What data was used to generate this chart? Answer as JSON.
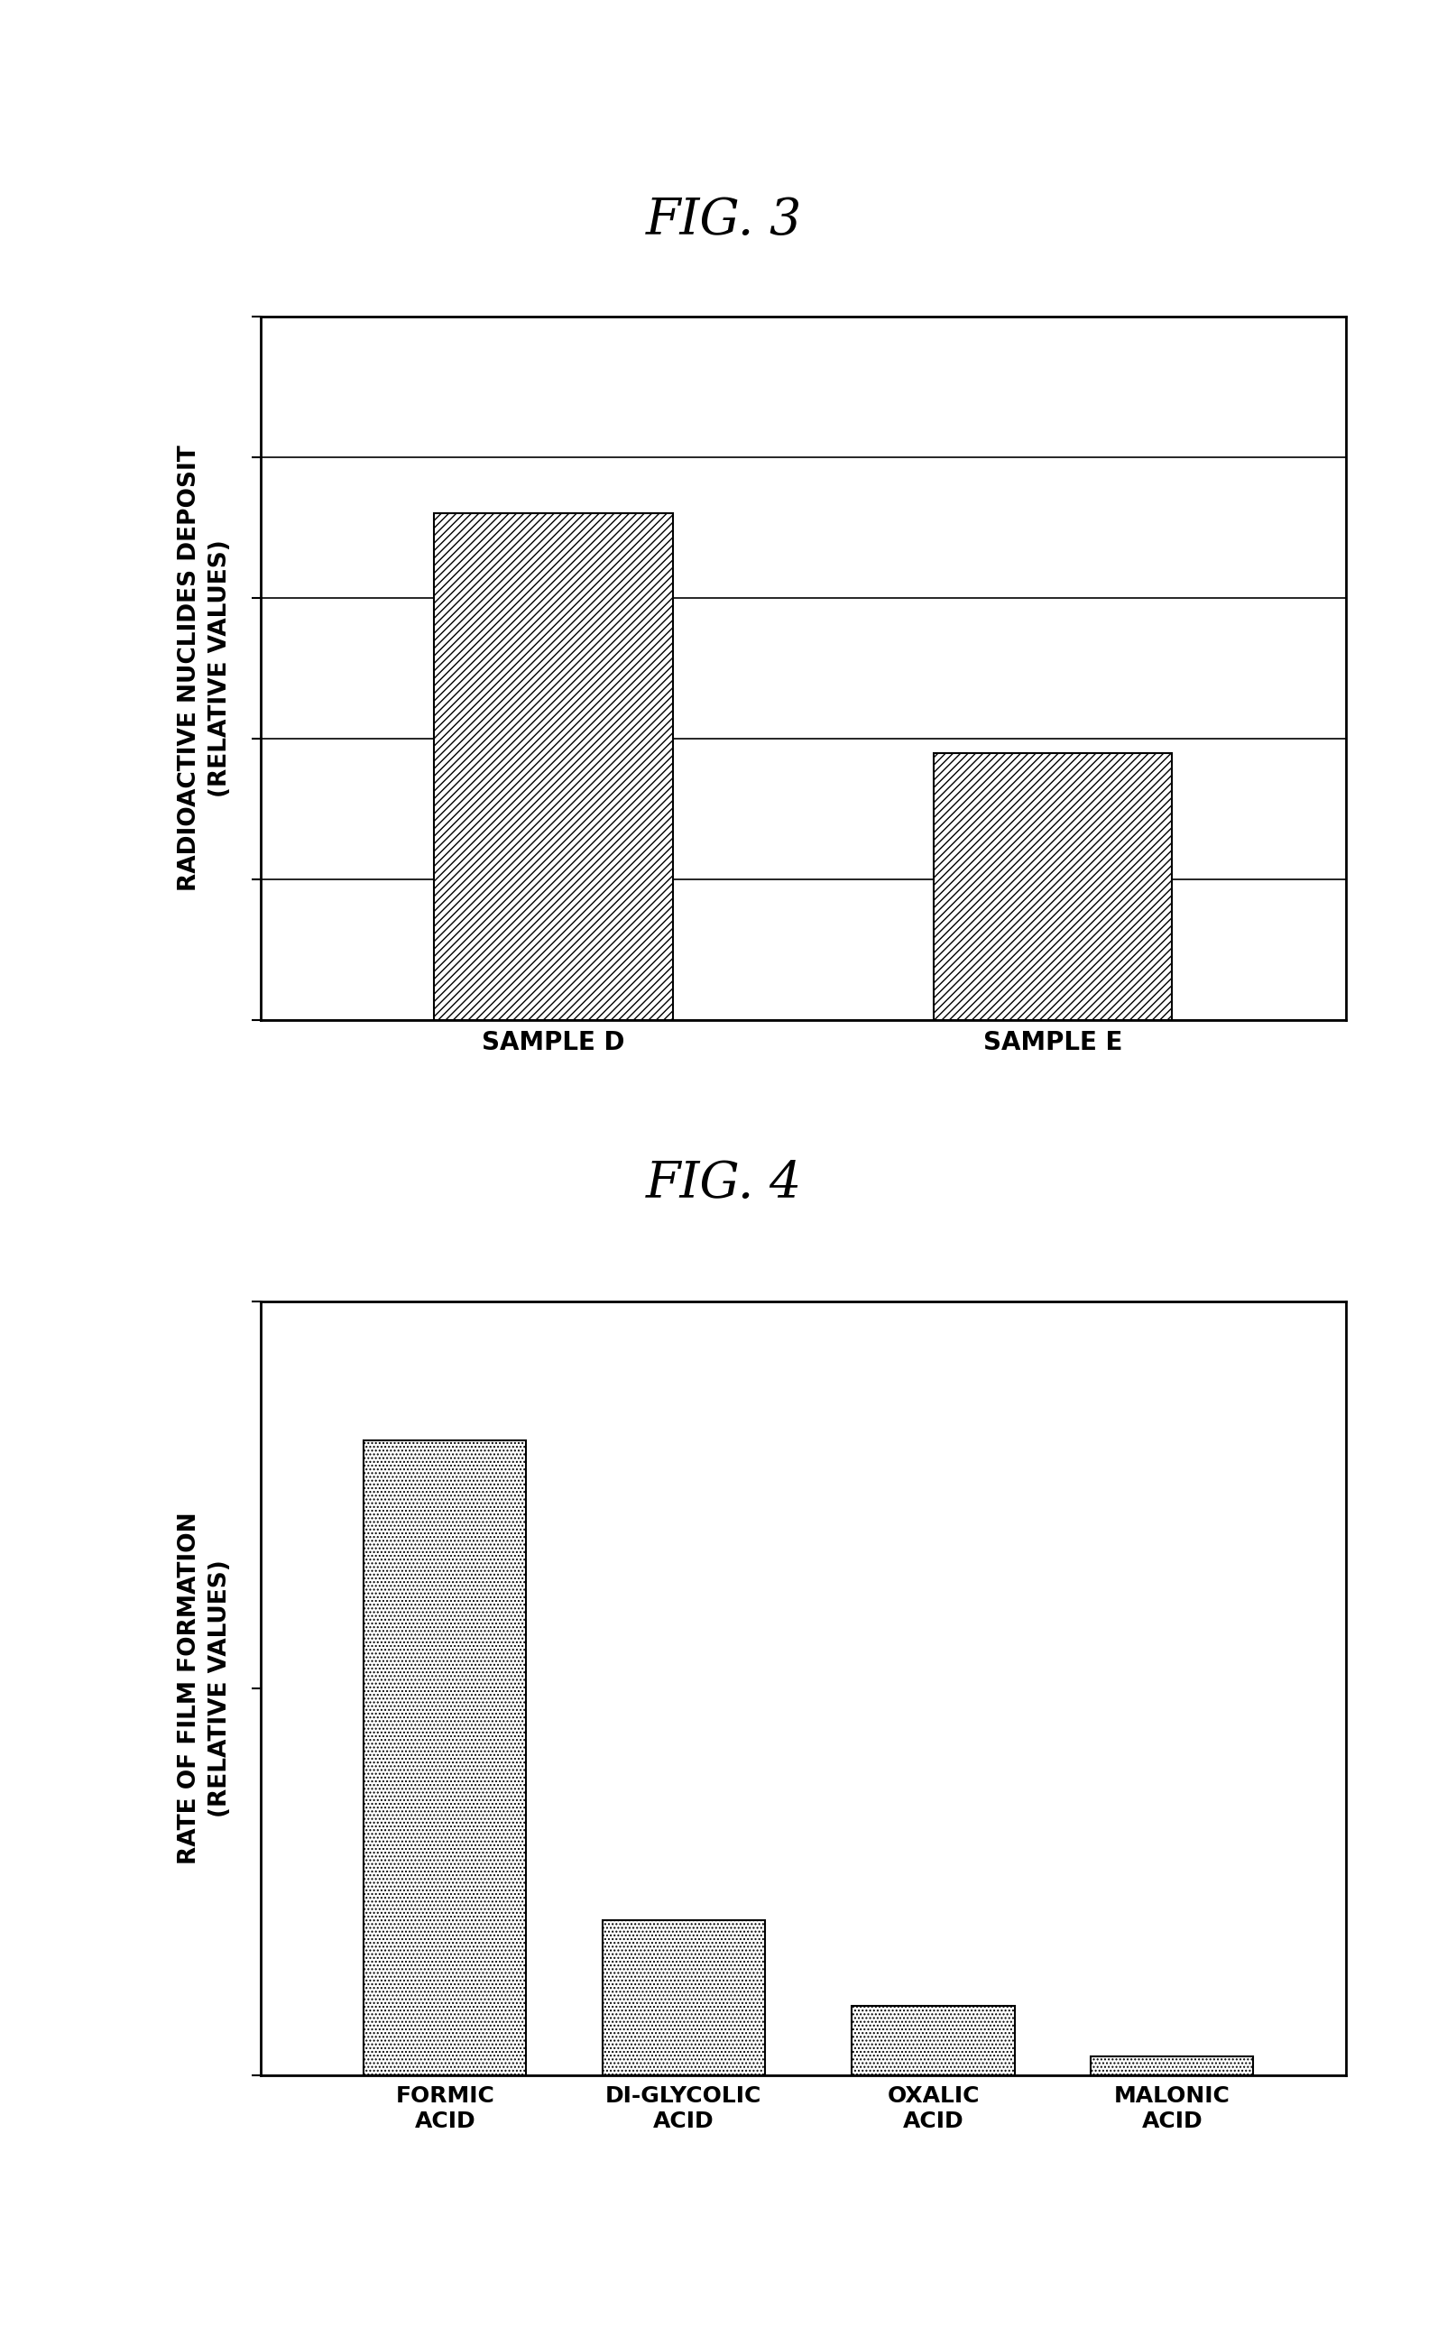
{
  "fig3": {
    "title": "FIG. 3",
    "ylabel_line1": "RADIOACTIVE NUCLIDES DEPOSIT",
    "ylabel_line2": "(RELATIVE VALUES)",
    "categories": [
      "SAMPLE D",
      "SAMPLE E"
    ],
    "values": [
      0.72,
      0.38
    ],
    "ylim": [
      0,
      1.0
    ],
    "n_gridlines": 6,
    "bar_positions": [
      0.27,
      0.73
    ],
    "bar_width": 0.22,
    "hatch": "////"
  },
  "fig4": {
    "title": "FIG. 4",
    "ylabel_line1": "RATE OF FILM FORMATION",
    "ylabel_line2": "(RELATIVE VALUES)",
    "categories": [
      "FORMIC\nACID",
      "DI-GLYCOLIC\nACID",
      "OXALIC\nACID",
      "MALONIC\nACID"
    ],
    "values": [
      0.82,
      0.2,
      0.09,
      0.025
    ],
    "ylim": [
      0,
      1.0
    ],
    "n_yticks": 3,
    "bar_positions": [
      0.17,
      0.39,
      0.62,
      0.84
    ],
    "bar_width": 0.15,
    "hatch": "...."
  },
  "background_color": "#ffffff",
  "bar_edge_color": "#000000",
  "bar_face_color": "#ffffff",
  "text_color": "#000000",
  "title_fontsize": 40,
  "label_fontsize": 19,
  "tick_fontsize": 20,
  "axis_linewidth": 2.0
}
